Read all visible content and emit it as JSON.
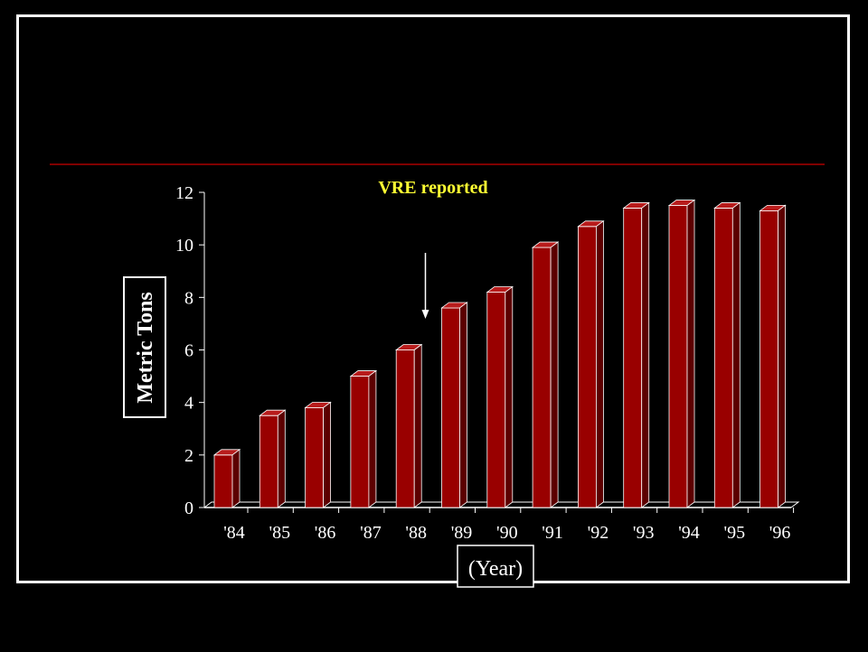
{
  "chart_data": {
    "type": "bar",
    "title": "",
    "ylabel": "Metric Tons",
    "xlabel": "(Year)",
    "categories": [
      "'84",
      "'85",
      "'86",
      "'87",
      "'88",
      "'89",
      "'90",
      "'91",
      "'92",
      "'93",
      "'94",
      "'95",
      "'96"
    ],
    "values": [
      2.0,
      3.5,
      3.8,
      5.0,
      6.0,
      7.6,
      8.2,
      9.9,
      10.7,
      11.4,
      11.5,
      11.4,
      11.3
    ],
    "ylim": [
      0,
      12
    ],
    "yticks": [
      0,
      2,
      4,
      6,
      8,
      10,
      12
    ],
    "grid": false,
    "annotation": {
      "text": "VRE reported",
      "at_category": "'89"
    },
    "colors": {
      "bar_front": "#990000",
      "bar_top": "#b81c1c",
      "bar_side": "#5c0000",
      "bar_edge": "#ffffff",
      "annotation_text": "#ffff33",
      "reference_line": "#aa0000",
      "axis": "#ffffff",
      "background": "#000000"
    }
  }
}
